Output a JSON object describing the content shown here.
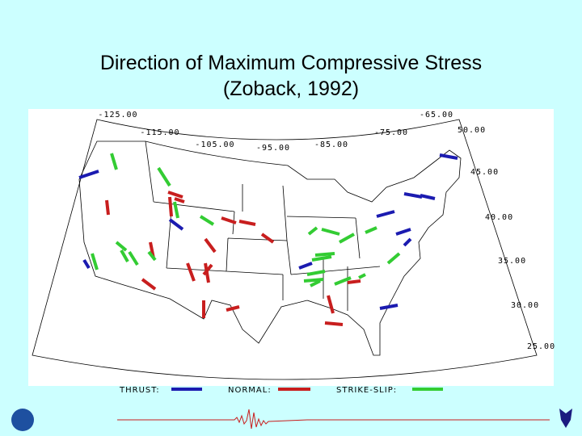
{
  "title": {
    "line1": "Direction of Maximum Compressive Stress",
    "line2": "(Zoback, 1992)"
  },
  "map": {
    "lon_labels": [
      "-125.00",
      "-115.00",
      "-105.00",
      "-95.00",
      "-85.00",
      "-75.00",
      "-65.00"
    ],
    "lat_labels": [
      "50.00",
      "45.00",
      "40.00",
      "35.00",
      "30.00",
      "25.00"
    ],
    "legend": [
      "THRUST:",
      "NORMAL:",
      "STRIKE-SLIP:"
    ]
  }
}
